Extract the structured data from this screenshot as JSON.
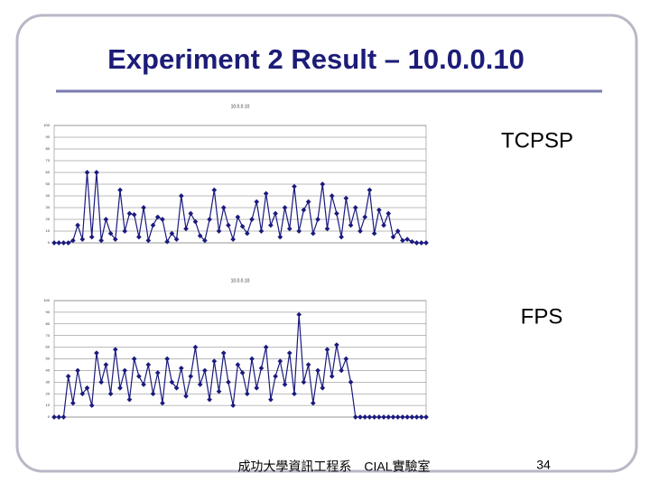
{
  "title": "Experiment 2 Result – 10.0.0.10",
  "labels": [
    "TCPSP",
    "FPS"
  ],
  "footer": "成功大學資訊工程系　CIAL實驗室",
  "page_number": "34",
  "chart_data": [
    {
      "type": "line",
      "title": "10.0.0.10",
      "color": "#1a1a7e",
      "grid": true,
      "ylim": [
        0,
        100
      ],
      "yticks": [
        0,
        10,
        20,
        30,
        40,
        50,
        60,
        70,
        80,
        90,
        100
      ],
      "xlim": [
        1,
        80
      ],
      "x": [
        1,
        2,
        3,
        4,
        5,
        6,
        7,
        8,
        9,
        10,
        11,
        12,
        13,
        14,
        15,
        16,
        17,
        18,
        19,
        20,
        21,
        22,
        23,
        24,
        25,
        26,
        27,
        28,
        29,
        30,
        31,
        32,
        33,
        34,
        35,
        36,
        37,
        38,
        39,
        40,
        41,
        42,
        43,
        44,
        45,
        46,
        47,
        48,
        49,
        50,
        51,
        52,
        53,
        54,
        55,
        56,
        57,
        58,
        59,
        60,
        61,
        62,
        63,
        64,
        65,
        66,
        67,
        68,
        69,
        70,
        71,
        72,
        73,
        74,
        75,
        76,
        77,
        78,
        79,
        80
      ],
      "values": [
        0,
        0,
        0,
        0,
        2,
        15,
        3,
        60,
        5,
        60,
        2,
        20,
        8,
        3,
        45,
        10,
        25,
        24,
        5,
        30,
        2,
        15,
        22,
        20,
        1,
        8,
        3,
        40,
        12,
        25,
        18,
        6,
        2,
        20,
        45,
        10,
        30,
        15,
        3,
        22,
        14,
        8,
        20,
        35,
        10,
        42,
        15,
        25,
        5,
        30,
        12,
        48,
        10,
        28,
        35,
        8,
        20,
        50,
        12,
        40,
        25,
        5,
        38,
        15,
        30,
        10,
        22,
        45,
        8,
        28,
        15,
        25,
        5,
        10,
        2,
        3,
        1,
        0,
        0,
        0
      ]
    },
    {
      "type": "line",
      "title": "10.0.0.10",
      "color": "#1a1a7e",
      "grid": true,
      "ylim": [
        0,
        100
      ],
      "yticks": [
        0,
        10,
        20,
        30,
        40,
        50,
        60,
        70,
        80,
        90,
        100
      ],
      "xlim": [
        1,
        80
      ],
      "x": [
        1,
        2,
        3,
        4,
        5,
        6,
        7,
        8,
        9,
        10,
        11,
        12,
        13,
        14,
        15,
        16,
        17,
        18,
        19,
        20,
        21,
        22,
        23,
        24,
        25,
        26,
        27,
        28,
        29,
        30,
        31,
        32,
        33,
        34,
        35,
        36,
        37,
        38,
        39,
        40,
        41,
        42,
        43,
        44,
        45,
        46,
        47,
        48,
        49,
        50,
        51,
        52,
        53,
        54,
        55,
        56,
        57,
        58,
        59,
        60,
        61,
        62,
        63,
        64,
        65,
        66,
        67,
        68,
        69,
        70,
        71,
        72,
        73,
        74,
        75,
        76,
        77,
        78,
        79,
        80
      ],
      "values": [
        0,
        0,
        0,
        35,
        12,
        40,
        20,
        25,
        10,
        55,
        30,
        45,
        20,
        58,
        25,
        40,
        15,
        50,
        35,
        28,
        45,
        20,
        38,
        12,
        50,
        30,
        25,
        42,
        18,
        35,
        60,
        28,
        40,
        15,
        48,
        22,
        55,
        30,
        10,
        45,
        38,
        20,
        50,
        25,
        42,
        60,
        15,
        35,
        48,
        28,
        55,
        20,
        88,
        30,
        45,
        12,
        40,
        25,
        58,
        35,
        62,
        40,
        50,
        30,
        0,
        0,
        0,
        0,
        0,
        0,
        0,
        0,
        0,
        0,
        0,
        0,
        0,
        0,
        0,
        0
      ]
    }
  ]
}
